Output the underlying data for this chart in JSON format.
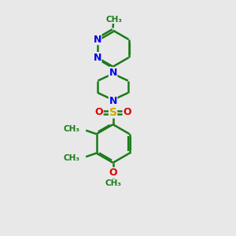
{
  "bg_color": "#e8e8e8",
  "bond_color": "#1a7a1a",
  "bond_width": 1.8,
  "N_color": "#0000ee",
  "O_color": "#dd0000",
  "S_color": "#ccaa00",
  "text_fontsize": 8.5,
  "figsize": [
    3.0,
    3.0
  ],
  "dpi": 100,
  "xlim": [
    2.0,
    8.5
  ],
  "ylim": [
    0.0,
    11.5
  ]
}
